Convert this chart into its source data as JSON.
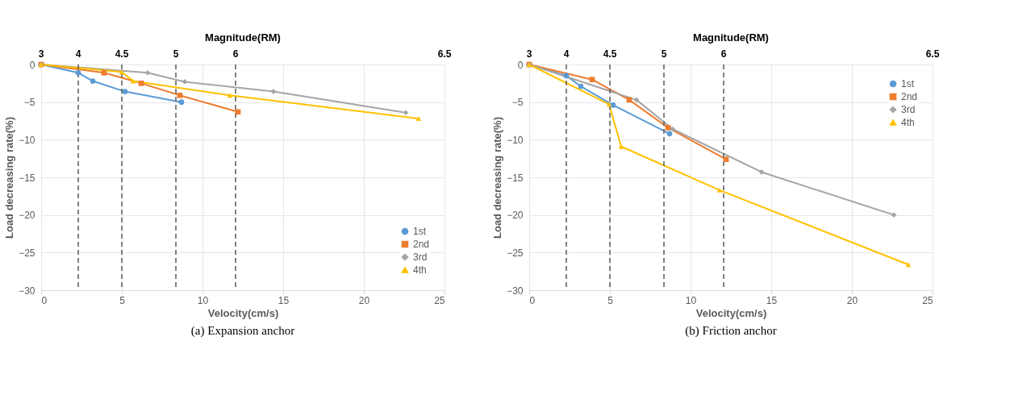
{
  "chart_data": [
    {
      "type": "line",
      "xlabel": "Velocity(cm/s)",
      "ylabel": "Load decreasing rate(%)",
      "x2label": "Magnitude(RM)",
      "annotations": [
        "(a) Expansion anchor",
        "3",
        "4",
        "4.5",
        "5",
        "6",
        "6.5"
      ],
      "xlim": [
        0,
        25
      ],
      "xticks": [
        0,
        5,
        10,
        15,
        20,
        25
      ],
      "ylim": [
        -30,
        0
      ],
      "yticks": [
        -30,
        -25,
        -20,
        -15,
        -10,
        -5,
        0
      ],
      "grid": true,
      "legend": "bottom right",
      "line_style": "solid",
      "ref_lines": [
        {
          "axis": "x",
          "value": 2.3,
          "line_style": "dashed",
          "color": "#595959"
        },
        {
          "axis": "x",
          "value": 5.0,
          "line_style": "dashed",
          "color": "#595959"
        },
        {
          "axis": "x",
          "value": 8.35,
          "line_style": "dashed",
          "color": "#595959"
        },
        {
          "axis": "x",
          "value": 12.05,
          "line_style": "dashed",
          "color": "#595959"
        }
      ],
      "series": [
        {
          "name": "1st",
          "color": "#5b9bd5",
          "marker": "circle",
          "x": [
            0,
            2.3,
            3.2,
            5.2,
            8.7
          ],
          "values": [
            0,
            -1.1,
            -2.2,
            -3.6,
            -5.0
          ]
        },
        {
          "name": "2nd",
          "color": "#ed7d31",
          "marker": "square",
          "x": [
            0,
            3.9,
            6.2,
            8.6,
            12.2
          ],
          "values": [
            0,
            -1.1,
            -2.5,
            -4.1,
            -6.3
          ]
        },
        {
          "name": "3rd",
          "color": "#a5a5a5",
          "marker": "diamond",
          "x": [
            0,
            6.6,
            8.9,
            14.4,
            22.6
          ],
          "values": [
            0,
            -1.1,
            -2.3,
            -3.6,
            -6.4
          ]
        },
        {
          "name": "4th",
          "color": "#ffc000",
          "marker": "triangle",
          "x": [
            0,
            5.0,
            5.7,
            11.7,
            23.4
          ],
          "values": [
            0,
            -1.0,
            -2.2,
            -4.1,
            -7.2
          ]
        }
      ]
    },
    {
      "type": "line",
      "xlabel": "Velocity(cm/s)",
      "ylabel": "Load decreasing rate(%)",
      "x2label": "Magnitude(RM)",
      "annotations": [
        "(b) Friction anchor",
        "3",
        "4",
        "4.5",
        "5",
        "6",
        "6.5"
      ],
      "xlim": [
        0,
        25
      ],
      "xticks": [
        0,
        5,
        10,
        15,
        20,
        25
      ],
      "ylim": [
        -30,
        0
      ],
      "yticks": [
        -30,
        -25,
        -20,
        -15,
        -10,
        -5,
        0
      ],
      "grid": true,
      "legend": "top right",
      "line_style": "solid",
      "ref_lines": [
        {
          "axis": "x",
          "value": 2.3,
          "line_style": "dashed",
          "color": "#595959"
        },
        {
          "axis": "x",
          "value": 5.0,
          "line_style": "dashed",
          "color": "#595959"
        },
        {
          "axis": "x",
          "value": 8.35,
          "line_style": "dashed",
          "color": "#595959"
        },
        {
          "axis": "x",
          "value": 12.05,
          "line_style": "dashed",
          "color": "#595959"
        }
      ],
      "series": [
        {
          "name": "1st",
          "color": "#5b9bd5",
          "marker": "circle",
          "x": [
            0,
            2.3,
            3.2,
            5.2,
            8.7
          ],
          "values": [
            0,
            -1.5,
            -2.9,
            -5.4,
            -9.2
          ]
        },
        {
          "name": "2nd",
          "color": "#ed7d31",
          "marker": "square",
          "x": [
            0,
            3.9,
            6.2,
            8.6,
            12.2
          ],
          "values": [
            0,
            -2.0,
            -4.7,
            -8.4,
            -12.6
          ]
        },
        {
          "name": "3rd",
          "color": "#a5a5a5",
          "marker": "diamond",
          "x": [
            0,
            6.65,
            8.9,
            14.4,
            22.6
          ],
          "values": [
            0,
            -4.7,
            -8.6,
            -14.3,
            -20.0
          ]
        },
        {
          "name": "4th",
          "color": "#ffc000",
          "marker": "triangle",
          "x": [
            0,
            4.95,
            5.7,
            11.8,
            23.5
          ],
          "values": [
            0,
            -5.3,
            -10.9,
            -16.7,
            -26.6
          ]
        }
      ]
    }
  ]
}
